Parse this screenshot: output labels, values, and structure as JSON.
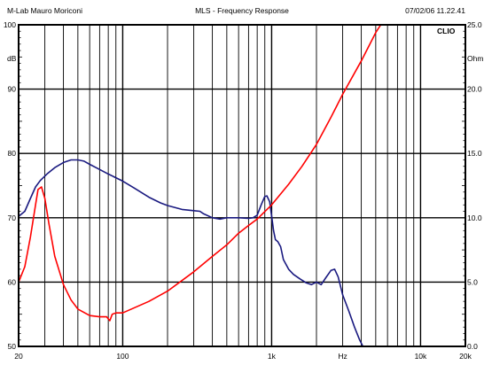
{
  "header": {
    "left": "M-Lab Mauro Moriconi",
    "center": "MLS - Frequency Response",
    "right": "07/02/06 11.22.41"
  },
  "brand": "CLIO",
  "chart_data": {
    "type": "line",
    "title": "MLS - Frequency Response",
    "x_scale": "log",
    "xlim": [
      20,
      20000
    ],
    "x_ticks": [
      {
        "value": 20,
        "label": "20"
      },
      {
        "value": 100,
        "label": "100"
      },
      {
        "value": 1000,
        "label": "1k"
      },
      {
        "value": 3000,
        "label": "Hz"
      },
      {
        "value": 10000,
        "label": "10k"
      },
      {
        "value": 20000,
        "label": "20k"
      }
    ],
    "y_left": {
      "unit": "dB",
      "lim": [
        50,
        100
      ],
      "ticks": [
        {
          "value": 100,
          "label": "100"
        },
        {
          "value": 90,
          "label": "90"
        },
        {
          "value": 80,
          "label": "80"
        },
        {
          "value": 70,
          "label": "70"
        },
        {
          "value": 60,
          "label": "60"
        },
        {
          "value": 50,
          "label": "50"
        }
      ]
    },
    "y_right": {
      "unit": "Ohm",
      "lim": [
        0,
        25
      ],
      "ticks": [
        {
          "value": 25,
          "label": "25.0"
        },
        {
          "value": 20,
          "label": "20.0"
        },
        {
          "value": 15,
          "label": "15.0"
        },
        {
          "value": 10,
          "label": "10.0"
        },
        {
          "value": 5,
          "label": "5.0"
        },
        {
          "value": 0,
          "label": "0.0"
        }
      ]
    },
    "grid": true,
    "series": [
      {
        "axis": "left",
        "color": "#1a1a80",
        "points": [
          [
            20,
            70.2
          ],
          [
            22,
            71.0
          ],
          [
            24,
            73.0
          ],
          [
            26,
            74.8
          ],
          [
            28,
            75.8
          ],
          [
            31,
            76.8
          ],
          [
            35,
            77.8
          ],
          [
            40,
            78.6
          ],
          [
            45,
            79.0
          ],
          [
            50,
            79.0
          ],
          [
            55,
            78.8
          ],
          [
            60,
            78.3
          ],
          [
            70,
            77.5
          ],
          [
            80,
            76.8
          ],
          [
            100,
            75.7
          ],
          [
            120,
            74.6
          ],
          [
            150,
            73.2
          ],
          [
            180,
            72.3
          ],
          [
            200,
            71.9
          ],
          [
            250,
            71.3
          ],
          [
            300,
            71.1
          ],
          [
            330,
            71.0
          ],
          [
            350,
            70.6
          ],
          [
            400,
            70.0
          ],
          [
            450,
            69.8
          ],
          [
            500,
            70.0
          ],
          [
            600,
            70.0
          ],
          [
            700,
            69.9
          ],
          [
            750,
            70.0
          ],
          [
            800,
            70.4
          ],
          [
            850,
            72.0
          ],
          [
            900,
            73.3
          ],
          [
            930,
            73.4
          ],
          [
            970,
            72.5
          ],
          [
            1000,
            70.3
          ],
          [
            1030,
            68.0
          ],
          [
            1060,
            66.6
          ],
          [
            1100,
            66.3
          ],
          [
            1150,
            65.5
          ],
          [
            1200,
            63.5
          ],
          [
            1300,
            62.0
          ],
          [
            1400,
            61.2
          ],
          [
            1550,
            60.5
          ],
          [
            1700,
            59.9
          ],
          [
            1850,
            59.6
          ],
          [
            2000,
            60.0
          ],
          [
            2150,
            59.6
          ],
          [
            2300,
            60.6
          ],
          [
            2500,
            61.8
          ],
          [
            2650,
            62.0
          ],
          [
            2800,
            60.8
          ],
          [
            3000,
            58.0
          ],
          [
            3300,
            55.5
          ],
          [
            3600,
            53.0
          ],
          [
            3900,
            51.0
          ],
          [
            4100,
            50.0
          ]
        ]
      },
      {
        "axis": "right",
        "color": "#ff0000",
        "points": [
          [
            20,
            5.0
          ],
          [
            22,
            6.2
          ],
          [
            24,
            8.5
          ],
          [
            26,
            11.0
          ],
          [
            27,
            12.2
          ],
          [
            28.5,
            12.4
          ],
          [
            30,
            11.5
          ],
          [
            32,
            9.5
          ],
          [
            35,
            7.0
          ],
          [
            40,
            4.8
          ],
          [
            45,
            3.6
          ],
          [
            50,
            2.9
          ],
          [
            60,
            2.4
          ],
          [
            70,
            2.3
          ],
          [
            78,
            2.3
          ],
          [
            82,
            2.0
          ],
          [
            85,
            2.5
          ],
          [
            90,
            2.6
          ],
          [
            100,
            2.6
          ],
          [
            150,
            3.5
          ],
          [
            200,
            4.3
          ],
          [
            300,
            5.8
          ],
          [
            400,
            7.0
          ],
          [
            500,
            7.9
          ],
          [
            600,
            8.8
          ],
          [
            700,
            9.4
          ],
          [
            800,
            9.9
          ],
          [
            1000,
            11.0
          ],
          [
            1300,
            12.6
          ],
          [
            1600,
            14.0
          ],
          [
            2000,
            15.7
          ],
          [
            2500,
            17.8
          ],
          [
            3000,
            19.6
          ],
          [
            4000,
            22.2
          ],
          [
            5000,
            24.4
          ],
          [
            5400,
            25.0
          ]
        ]
      }
    ]
  }
}
